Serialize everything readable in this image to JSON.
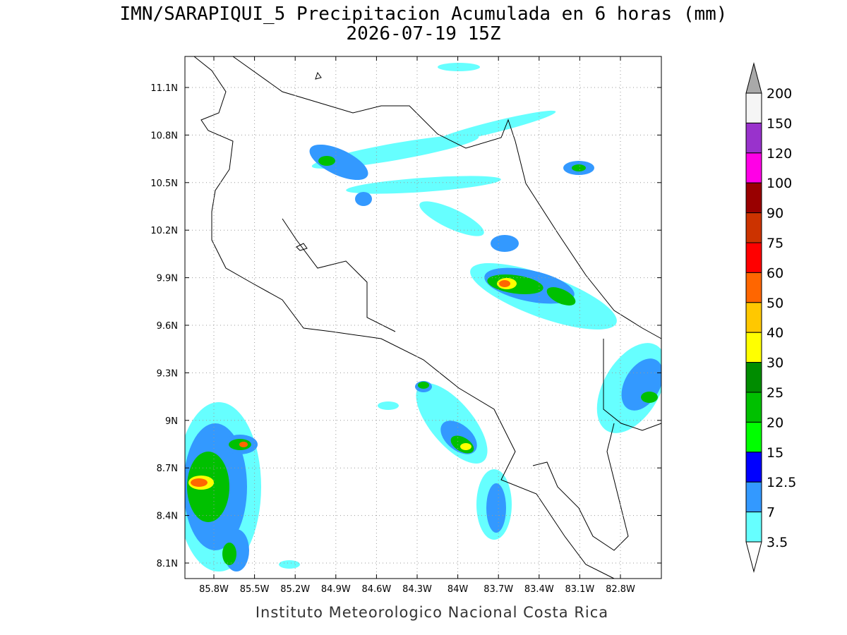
{
  "header": {
    "title": "IMN/SARAPIQUI_5 Precipitacion Acumulada en 6 horas (mm)",
    "subtitle": "2026-07-19 15Z"
  },
  "map": {
    "lat_labels": [
      "11.1N",
      "10.8N",
      "10.5N",
      "10.2N",
      "9.9N",
      "9.6N",
      "9.3N",
      "9N",
      "8.7N",
      "8.4N",
      "8.1N"
    ],
    "lon_labels": [
      "85.8W",
      "85.5W",
      "85.2W",
      "84.9W",
      "84.6W",
      "84.3W",
      "84W",
      "83.7W",
      "83.4W",
      "83.1W",
      "82.8W"
    ]
  },
  "colorbar": {
    "labels": [
      "200",
      "150",
      "120",
      "100",
      "90",
      "75",
      "60",
      "50",
      "40",
      "30",
      "25",
      "20",
      "15",
      "12.5",
      "7",
      "3.5"
    ],
    "colors": [
      "#a9a9a9",
      "#f5f5f5",
      "#9932cc",
      "#ff00e6",
      "#990000",
      "#cc3300",
      "#ff0000",
      "#ff6600",
      "#ffc800",
      "#ffff00",
      "#008c00",
      "#00c000",
      "#00ff00",
      "#0000ff",
      "#3399ff",
      "#66ffff",
      "#ffffff"
    ]
  },
  "footer": "Instituto Meteorologico Nacional Costa Rica"
}
